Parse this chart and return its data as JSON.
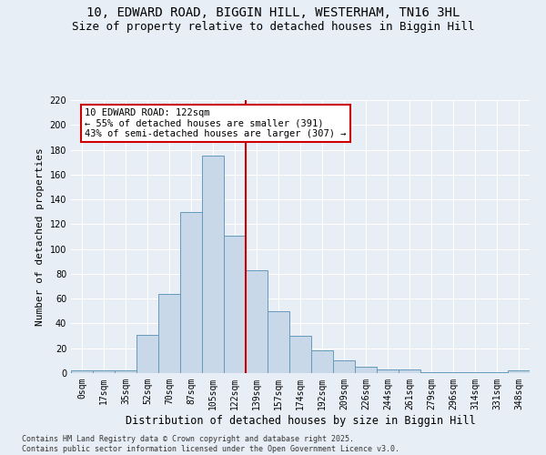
{
  "title1": "10, EDWARD ROAD, BIGGIN HILL, WESTERHAM, TN16 3HL",
  "title2": "Size of property relative to detached houses in Biggin Hill",
  "xlabel": "Distribution of detached houses by size in Biggin Hill",
  "ylabel": "Number of detached properties",
  "bin_labels": [
    "0sqm",
    "17sqm",
    "35sqm",
    "52sqm",
    "70sqm",
    "87sqm",
    "105sqm",
    "122sqm",
    "139sqm",
    "157sqm",
    "174sqm",
    "192sqm",
    "209sqm",
    "226sqm",
    "244sqm",
    "261sqm",
    "279sqm",
    "296sqm",
    "314sqm",
    "331sqm",
    "348sqm"
  ],
  "bar_heights": [
    2,
    2,
    2,
    31,
    64,
    130,
    175,
    111,
    83,
    50,
    30,
    18,
    10,
    5,
    3,
    3,
    1,
    1,
    1,
    1,
    2
  ],
  "bar_color": "#c8d8e8",
  "bar_edge_color": "#6699bb",
  "vline_x_index": 7,
  "vline_color": "#cc0000",
  "annotation_text": "10 EDWARD ROAD: 122sqm\n← 55% of detached houses are smaller (391)\n43% of semi-detached houses are larger (307) →",
  "annotation_box_color": "#ffffff",
  "annotation_box_edge": "#cc0000",
  "ylim": [
    0,
    220
  ],
  "yticks": [
    0,
    20,
    40,
    60,
    80,
    100,
    120,
    140,
    160,
    180,
    200,
    220
  ],
  "background_color": "#e8eef5",
  "grid_color": "#ffffff",
  "footer": "Contains HM Land Registry data © Crown copyright and database right 2025.\nContains public sector information licensed under the Open Government Licence v3.0.",
  "title1_fontsize": 10,
  "title2_fontsize": 9,
  "xlabel_fontsize": 8.5,
  "ylabel_fontsize": 8,
  "tick_fontsize": 7,
  "annotation_fontsize": 7.5,
  "footer_fontsize": 6
}
